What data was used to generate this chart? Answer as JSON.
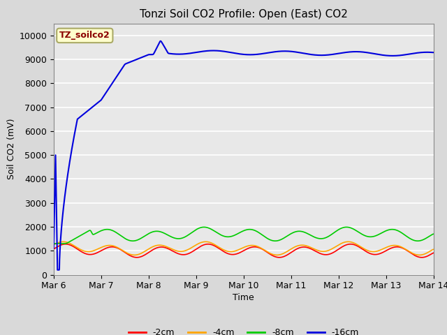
{
  "title": "Tonzi Soil CO2 Profile: Open (East) CO2",
  "xlabel": "Time",
  "ylabel": "Soil CO2 (mV)",
  "ylim": [
    0,
    10500
  ],
  "yticks": [
    0,
    1000,
    2000,
    3000,
    4000,
    5000,
    6000,
    7000,
    8000,
    9000,
    10000
  ],
  "xtick_labels": [
    "Mar 6",
    "Mar 7",
    "Mar 8",
    "Mar 9",
    "Mar 10",
    "Mar 11",
    "Mar 12",
    "Mar 13",
    "Mar 14"
  ],
  "background_color": "#d9d9d9",
  "plot_bg_color": "#e8e8e8",
  "grid_color": "#ffffff",
  "colors": {
    "2cm": "#ff0000",
    "4cm": "#ffa500",
    "8cm": "#00cc00",
    "16cm": "#0000dd"
  },
  "legend_labels": [
    "-2cm",
    "-4cm",
    "-8cm",
    "-16cm"
  ],
  "annotation_text": "TZ_soilco2",
  "annotation_color": "#8b0000",
  "annotation_bg": "#ffffcc",
  "annotation_border": "#aaaa66"
}
